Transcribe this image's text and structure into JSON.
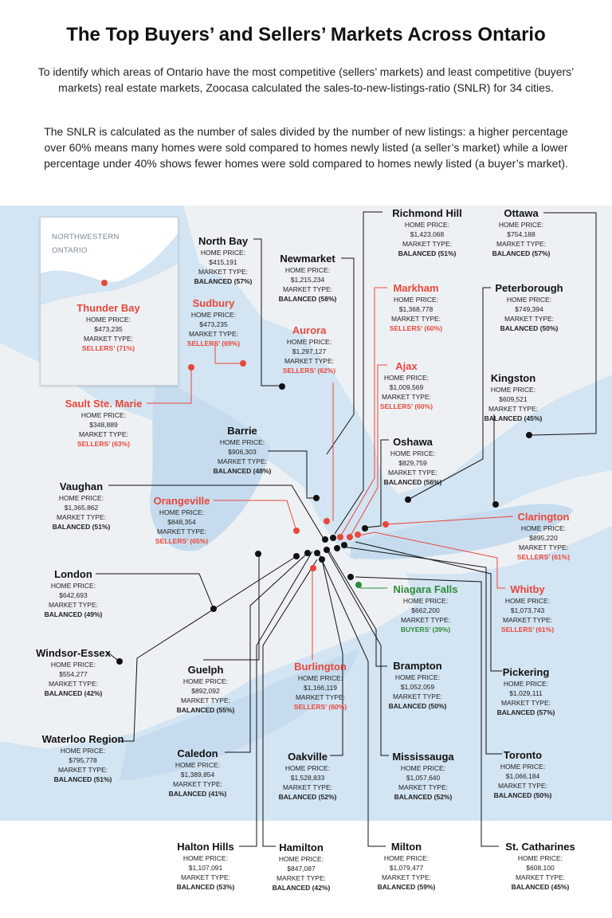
{
  "title": "The Top Buyers’ and Sellers’ Markets Across Ontario",
  "intro_1": "To identify which areas of Ontario have the most competitive (sellers’ markets) and least competitive (buyers’ markets) real estate markets, Zoocasa calculated the sales-to-new-listings-ratio (SNLR) for 34 cities.",
  "intro_2": "The SNLR is calculated as the number of sales divided by the number of new listings: a higher percentage over 60% means many homes were sold compared to homes newly listed (a seller’s market) while a lower percentage under 40% shows fewer homes were sold compared to homes newly listed (a buyer’s market).",
  "labels": {
    "home_price": "HOME PRICE:",
    "market_type": "MARKET TYPE:"
  },
  "inset": {
    "line1": "NORTHWESTERN",
    "line2": "ONTARIO"
  },
  "colors": {
    "sellers": "#e8473a",
    "buyers": "#2e8b3a",
    "balanced": "#111111",
    "water": "#cfe2f1",
    "land": "#eef1f4"
  },
  "cities": [
    {
      "name": "Thunder Bay",
      "price": "$473,235",
      "market": "SELLERS’ (71%)",
      "type": "sellers"
    },
    {
      "name": "North Bay",
      "price": "$415,191",
      "market": "BALANCED (57%)",
      "type": "balanced"
    },
    {
      "name": "Sudbury",
      "price": "$473,235",
      "market": "SELLERS’ (69%)",
      "type": "sellers"
    },
    {
      "name": "Newmarket",
      "price": "$1,215,234",
      "market": "BALANCED (58%)",
      "type": "balanced"
    },
    {
      "name": "Aurora",
      "price": "$1,297,127",
      "market": "SELLERS’ (62%)",
      "type": "sellers"
    },
    {
      "name": "Richmond Hill",
      "price": "$1,423,068",
      "market": "BALANCED (51%)",
      "type": "balanced"
    },
    {
      "name": "Markham",
      "price": "$1,368,778",
      "market": "SELLERS’ (60%)",
      "type": "sellers"
    },
    {
      "name": "Ottawa",
      "price": "$754,188",
      "market": "BALANCED (57%)",
      "type": "balanced"
    },
    {
      "name": "Peterborough",
      "price": "$749,394",
      "market": "BALANCED (50%)",
      "type": "balanced"
    },
    {
      "name": "Ajax",
      "price": "$1,009,569",
      "market": "SELLERS’ (60%)",
      "type": "sellers"
    },
    {
      "name": "Kingston",
      "price": "$609,521",
      "market": "BALANCED (45%)",
      "type": "balanced"
    },
    {
      "name": "Sault Ste. Marie",
      "price": "$348,889",
      "market": "SELLERS’ (63%)",
      "type": "sellers"
    },
    {
      "name": "Barrie",
      "price": "$906,303",
      "market": "BALANCED (48%)",
      "type": "balanced"
    },
    {
      "name": "Oshawa",
      "price": "$829,759",
      "market": "BALANCED (56%)",
      "type": "balanced"
    },
    {
      "name": "Vaughan",
      "price": "$1,365,862",
      "market": "BALANCED (51%)",
      "type": "balanced"
    },
    {
      "name": "Orangeville",
      "price": "$848,354",
      "market": "SELLERS’ (65%)",
      "type": "sellers"
    },
    {
      "name": "Clarington",
      "price": "$895,220",
      "market": "SELLERS’ (61%)",
      "type": "sellers"
    },
    {
      "name": "London",
      "price": "$642,693",
      "market": "BALANCED (49%)",
      "type": "balanced"
    },
    {
      "name": "Niagara Falls",
      "price": "$662,200",
      "market": "BUYERS’ (39%)",
      "type": "buyers"
    },
    {
      "name": "Whitby",
      "price": "$1,073,743",
      "market": "SELLERS’ (61%)",
      "type": "sellers"
    },
    {
      "name": "Windsor-Essex",
      "price": "$554,277",
      "market": "BALANCED (42%)",
      "type": "balanced"
    },
    {
      "name": "Guelph",
      "price": "$892,092",
      "market": "BALANCED (55%)",
      "type": "balanced"
    },
    {
      "name": "Burlington",
      "price": "$1,166,119",
      "market": "SELLERS’ (60%)",
      "type": "sellers"
    },
    {
      "name": "Brampton",
      "price": "$1,052,059",
      "market": "BALANCED (50%)",
      "type": "balanced"
    },
    {
      "name": "Pickering",
      "price": "$1,029,111",
      "market": "BALANCED (57%)",
      "type": "balanced"
    },
    {
      "name": "Waterloo Region",
      "price": "$795,778",
      "market": "BALANCED (51%)",
      "type": "balanced"
    },
    {
      "name": "Caledon",
      "price": "$1,389,854",
      "market": "BALANCED (41%)",
      "type": "balanced"
    },
    {
      "name": "Oakville",
      "price": "$1,528,833",
      "market": "BALANCED (52%)",
      "type": "balanced"
    },
    {
      "name": "Mississauga",
      "price": "$1,057,640",
      "market": "BALANCED (52%)",
      "type": "balanced"
    },
    {
      "name": "Toronto",
      "price": "$1,066,184",
      "market": "BALANCED (50%)",
      "type": "balanced"
    },
    {
      "name": "Halton Hills",
      "price": "$1,107,091",
      "market": "BALANCED (53%)",
      "type": "balanced"
    },
    {
      "name": "Hamilton",
      "price": "$847,087",
      "market": "BALANCED (42%)",
      "type": "balanced"
    },
    {
      "name": "Milton",
      "price": "$1,079,477",
      "market": "BALANCED (59%)",
      "type": "balanced"
    },
    {
      "name": "St. Catharines",
      "price": "$608,100",
      "market": "BALANCED (45%)",
      "type": "balanced"
    }
  ]
}
